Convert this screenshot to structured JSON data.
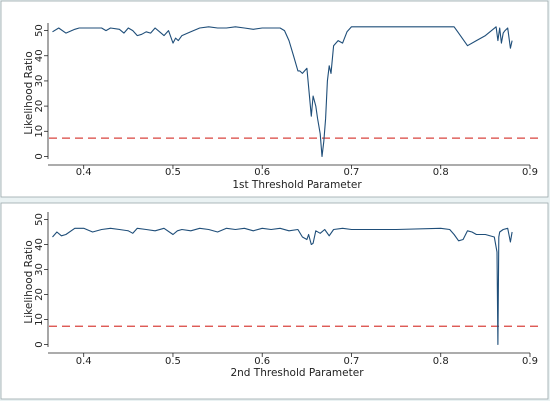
{
  "colors": {
    "page_background": "#eaf2f3",
    "plot_background": "#ffffff",
    "series_line": "#1f4e79",
    "threshold_line": "#d9443f"
  },
  "chart_data": [
    {
      "type": "line",
      "title": "",
      "xlabel": "1st Threshold Parameter",
      "ylabel": "Likelihood Ratio",
      "xlim": [
        0.36,
        0.9
      ],
      "ylim": [
        -1,
        53
      ],
      "xticks": [
        0.4,
        0.5,
        0.6,
        0.7,
        0.8,
        0.9
      ],
      "yticks": [
        0,
        10,
        20,
        30,
        40,
        50
      ],
      "grid": false,
      "legend": "none",
      "reference_line": {
        "y": 7.3,
        "style": "dashed"
      },
      "series": [
        {
          "x": [
            0.365,
            0.372,
            0.38,
            0.39,
            0.395,
            0.4,
            0.41,
            0.42,
            0.425,
            0.43,
            0.44,
            0.445,
            0.45,
            0.455,
            0.46,
            0.465,
            0.47,
            0.475,
            0.48,
            0.485,
            0.49,
            0.495,
            0.5,
            0.503,
            0.506,
            0.51,
            0.52,
            0.53,
            0.54,
            0.55,
            0.56,
            0.57,
            0.58,
            0.59,
            0.6,
            0.61,
            0.62,
            0.625,
            0.63,
            0.635,
            0.64,
            0.642,
            0.645,
            0.65,
            0.655,
            0.657,
            0.66,
            0.662,
            0.665,
            0.667,
            0.669,
            0.671,
            0.673,
            0.675,
            0.677,
            0.68,
            0.685,
            0.69,
            0.695,
            0.7,
            0.72,
            0.75,
            0.8,
            0.815,
            0.82,
            0.83,
            0.84,
            0.85,
            0.862,
            0.864,
            0.866,
            0.868,
            0.87,
            0.872,
            0.875,
            0.878,
            0.88
          ],
          "y": [
            49.5,
            51,
            49,
            50.5,
            51,
            51,
            51,
            51,
            50,
            51,
            50.5,
            49,
            51,
            50,
            48,
            48.5,
            49.5,
            49,
            51,
            49.5,
            48,
            50,
            45,
            47,
            46,
            48,
            49.5,
            51,
            51.5,
            51,
            51,
            51.5,
            51,
            50.5,
            51,
            51,
            51,
            50,
            46,
            40,
            34,
            34,
            33,
            35,
            16,
            24,
            20,
            15,
            9,
            0,
            6,
            15,
            30,
            36,
            33,
            44,
            46,
            45,
            49.5,
            51.5,
            51.5,
            51.5,
            51.5,
            51.5,
            49,
            44,
            46,
            48,
            51.5,
            46,
            51,
            45,
            49,
            50,
            51,
            43,
            46
          ]
        }
      ]
    },
    {
      "type": "line",
      "title": "",
      "xlabel": "2nd Threshold Parameter",
      "ylabel": "Likelihood Ratio",
      "xlim": [
        0.36,
        0.9
      ],
      "ylim": [
        -1,
        53
      ],
      "xticks": [
        0.4,
        0.5,
        0.6,
        0.7,
        0.8,
        0.9
      ],
      "yticks": [
        0,
        10,
        20,
        30,
        40,
        50
      ],
      "grid": false,
      "legend": "none",
      "reference_line": {
        "y": 7.3,
        "style": "dashed"
      },
      "series": [
        {
          "x": [
            0.365,
            0.37,
            0.375,
            0.38,
            0.39,
            0.4,
            0.41,
            0.42,
            0.43,
            0.44,
            0.45,
            0.455,
            0.46,
            0.47,
            0.48,
            0.49,
            0.5,
            0.505,
            0.51,
            0.52,
            0.53,
            0.54,
            0.55,
            0.56,
            0.57,
            0.58,
            0.59,
            0.6,
            0.61,
            0.62,
            0.63,
            0.64,
            0.645,
            0.65,
            0.652,
            0.655,
            0.657,
            0.66,
            0.665,
            0.67,
            0.675,
            0.68,
            0.69,
            0.7,
            0.75,
            0.8,
            0.81,
            0.815,
            0.82,
            0.825,
            0.83,
            0.835,
            0.84,
            0.85,
            0.86,
            0.863,
            0.864,
            0.865,
            0.866,
            0.87,
            0.875,
            0.878,
            0.88
          ],
          "y": [
            43,
            45,
            43.5,
            44,
            46.5,
            46.5,
            45,
            46,
            46.5,
            46,
            45.5,
            44.5,
            46.5,
            46,
            45.5,
            46.5,
            44,
            45.5,
            46,
            45.5,
            46.5,
            46,
            45,
            46.5,
            46,
            46.5,
            45.5,
            46.5,
            46,
            46.5,
            45.5,
            46,
            43,
            42,
            44,
            40,
            40.5,
            45.5,
            44.5,
            46,
            43.5,
            46,
            46.5,
            46,
            46,
            46.5,
            46,
            44,
            41.5,
            42,
            45.5,
            45,
            44,
            44,
            43,
            37,
            0,
            43,
            45,
            46,
            46.5,
            41,
            45
          ]
        }
      ]
    }
  ]
}
